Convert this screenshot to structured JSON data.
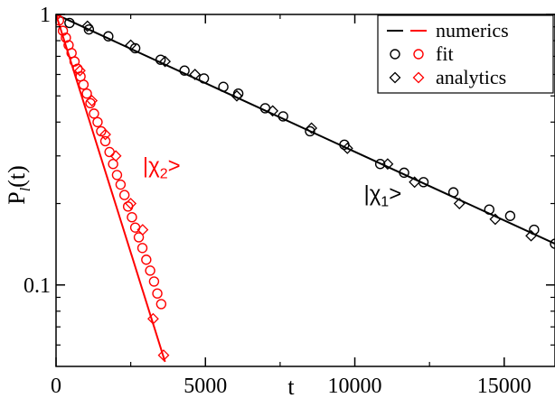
{
  "chart_data": {
    "type": "line",
    "y_scale": "log",
    "xlim": [
      0,
      16700
    ],
    "ylim": [
      0.05,
      1.0
    ],
    "xlabel": "t",
    "ylabel": {
      "main": "P",
      "sub": "l",
      "tail": "(t)"
    },
    "x_ticks": [
      {
        "value": 0,
        "label": "0"
      },
      {
        "value": 5000,
        "label": "5000"
      },
      {
        "value": 10000,
        "label": "10000"
      },
      {
        "value": 15000,
        "label": "15000"
      }
    ],
    "y_ticks": [
      {
        "value": 1,
        "label": "1"
      },
      {
        "value": 0.1,
        "label": "0.1"
      }
    ],
    "legend_position": "top-right",
    "legend": [
      {
        "label": "numerics",
        "kind": "line"
      },
      {
        "label": "fit",
        "kind": "circle"
      },
      {
        "label": "analytics",
        "kind": "diamond"
      }
    ],
    "annotations": [
      {
        "open": "|",
        "symbol": "χ",
        "sub": "1",
        "close": ">",
        "x": 10300,
        "y": 0.205,
        "color": "#000000"
      },
      {
        "open": "|",
        "symbol": "χ",
        "sub": "2",
        "close": ">",
        "x": 2900,
        "y": 0.26,
        "color": "#ff0000"
      }
    ],
    "series": [
      {
        "color": "#000000",
        "numerics": {
          "x": [
            0,
            16700
          ],
          "y": [
            1.0,
            0.142
          ]
        },
        "fit": {
          "x": [
            0,
            450,
            1100,
            1750,
            2650,
            3500,
            4300,
            4950,
            5600,
            6100,
            7000,
            7600,
            8500,
            9650,
            10850,
            11650,
            12300,
            13300,
            14500,
            15200,
            16000,
            16700
          ],
          "y": [
            1.0,
            0.93,
            0.88,
            0.83,
            0.75,
            0.68,
            0.62,
            0.58,
            0.54,
            0.51,
            0.45,
            0.42,
            0.37,
            0.33,
            0.28,
            0.26,
            0.24,
            0.22,
            0.19,
            0.18,
            0.16,
            0.142
          ]
        },
        "analytics": {
          "x": [
            1050,
            2500,
            3650,
            4650,
            6050,
            7250,
            8550,
            9750,
            11100,
            12000,
            13500,
            14700,
            15900
          ],
          "y": [
            0.905,
            0.77,
            0.67,
            0.6,
            0.5,
            0.44,
            0.38,
            0.32,
            0.28,
            0.24,
            0.2,
            0.175,
            0.152
          ]
        }
      },
      {
        "color": "#ff0000",
        "numerics": {
          "x": [
            0,
            3650
          ],
          "y": [
            1.0,
            0.052
          ]
        },
        "fit": {
          "x": [
            0,
            100,
            230,
            330,
            420,
            520,
            620,
            720,
            820,
            920,
            1030,
            1150,
            1270,
            1390,
            1510,
            1650,
            1790,
            1910,
            2040,
            2160,
            2290,
            2410,
            2540,
            2650,
            2770,
            2890,
            3020,
            3150,
            3280,
            3390,
            3520
          ],
          "y": [
            1.0,
            0.95,
            0.87,
            0.82,
            0.77,
            0.72,
            0.67,
            0.63,
            0.59,
            0.55,
            0.51,
            0.47,
            0.43,
            0.4,
            0.37,
            0.34,
            0.31,
            0.28,
            0.255,
            0.235,
            0.215,
            0.195,
            0.178,
            0.163,
            0.15,
            0.137,
            0.124,
            0.113,
            0.103,
            0.093,
            0.085
          ]
        },
        "analytics": {
          "x": [
            800,
            1200,
            1650,
            2000,
            2500,
            2900,
            3250,
            3600
          ],
          "y": [
            0.62,
            0.48,
            0.36,
            0.3,
            0.2,
            0.16,
            0.075,
            0.055
          ]
        }
      }
    ]
  }
}
